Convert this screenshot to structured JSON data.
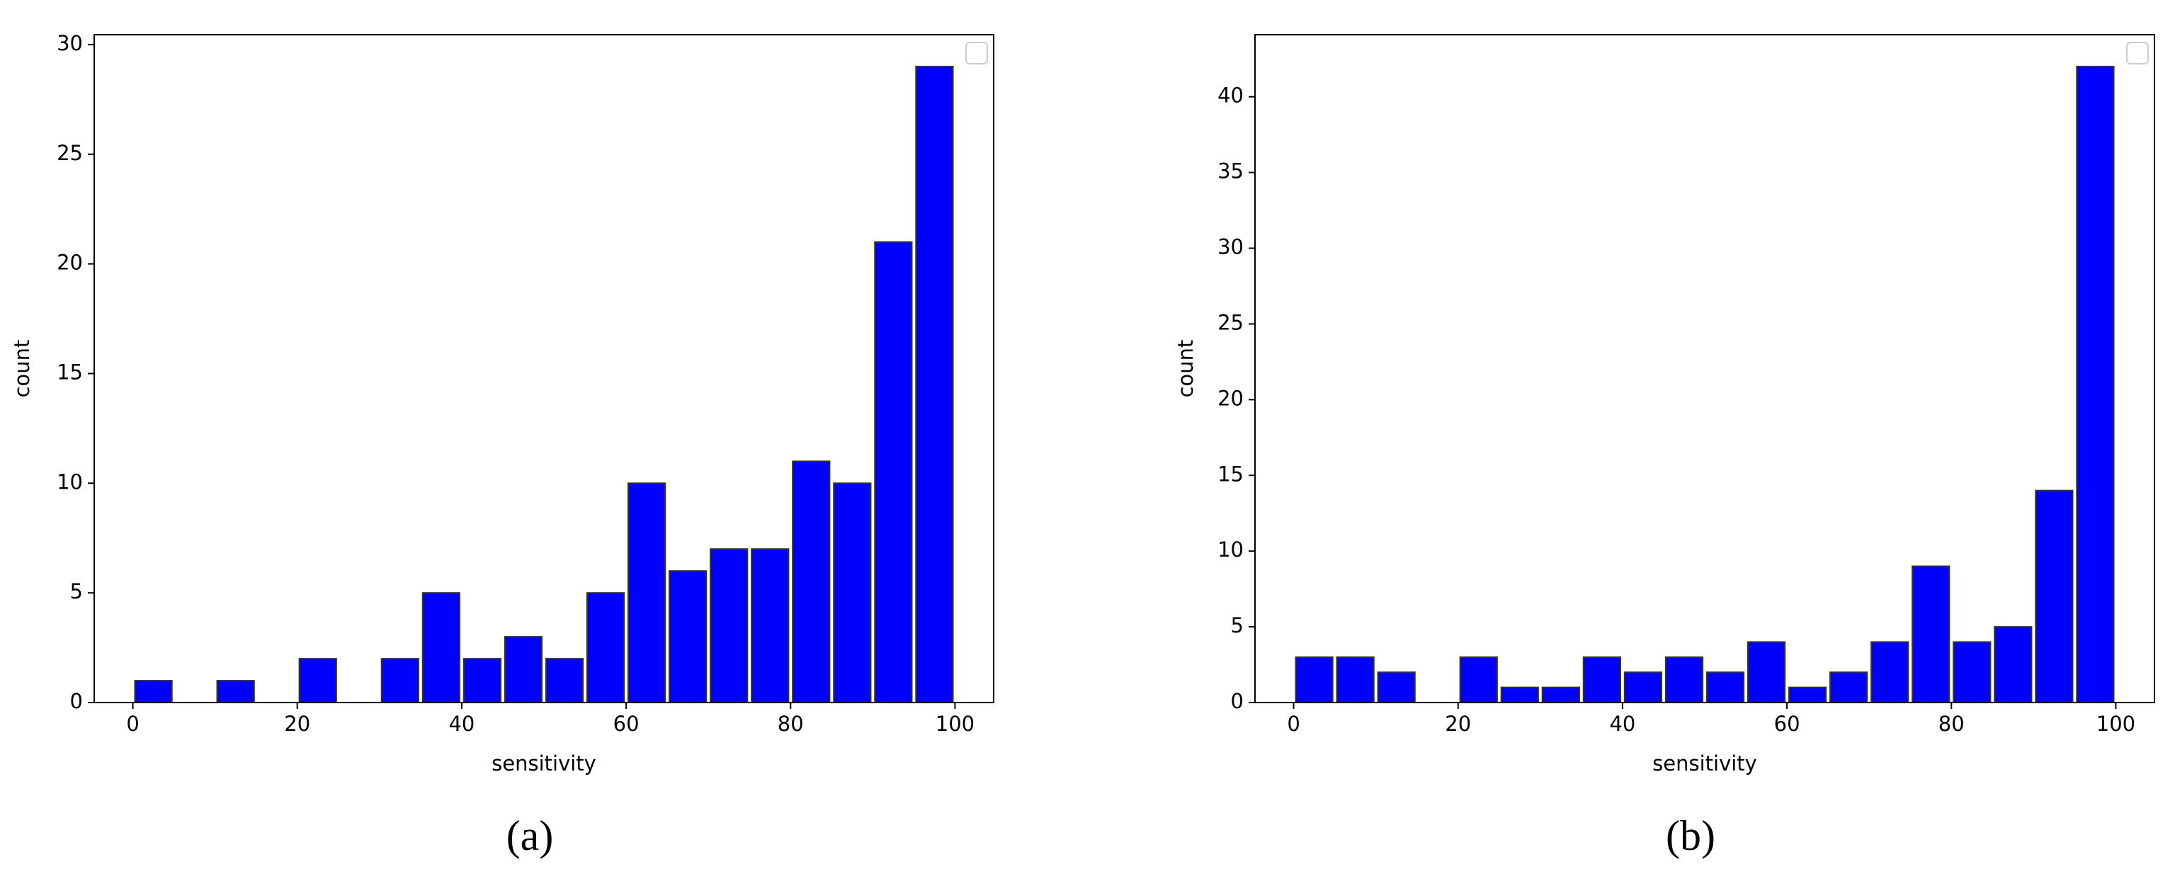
{
  "chart_data": [
    {
      "type": "histogram",
      "caption": "(a)",
      "xlabel": "sensitivity",
      "ylabel": "count",
      "bins": [
        0,
        5,
        10,
        15,
        20,
        25,
        30,
        35,
        40,
        45,
        50,
        55,
        60,
        65,
        70,
        75,
        80,
        85,
        90,
        95,
        100
      ],
      "values": [
        1,
        0,
        1,
        0,
        2,
        0,
        2,
        5,
        2,
        3,
        2,
        5,
        10,
        6,
        7,
        7,
        11,
        10,
        21,
        29
      ],
      "color": "#0000ff",
      "edgecolor": "#3a3a00",
      "xlim": [
        -4.7,
        104.7
      ],
      "xticks": [
        0,
        20,
        40,
        60,
        80,
        100
      ],
      "ylim": [
        0,
        30.45
      ],
      "yticks": [
        0,
        5,
        10,
        15,
        20,
        25,
        30
      ]
    },
    {
      "type": "histogram",
      "caption": "(b)",
      "xlabel": "sensitivity",
      "ylabel": "count",
      "bins": [
        0,
        5,
        10,
        15,
        20,
        25,
        30,
        35,
        40,
        45,
        50,
        55,
        60,
        65,
        70,
        75,
        80,
        85,
        90,
        95,
        100
      ],
      "values": [
        3,
        3,
        2,
        0,
        3,
        1,
        1,
        3,
        2,
        3,
        2,
        4,
        1,
        2,
        4,
        9,
        4,
        5,
        14,
        42
      ],
      "color": "#0000ff",
      "edgecolor": "#3a3a00",
      "xlim": [
        -4.7,
        104.7
      ],
      "xticks": [
        0,
        20,
        40,
        60,
        80,
        100
      ],
      "ylim": [
        0,
        44.1
      ],
      "yticks": [
        0,
        5,
        10,
        15,
        20,
        25,
        30,
        35,
        40
      ]
    }
  ]
}
